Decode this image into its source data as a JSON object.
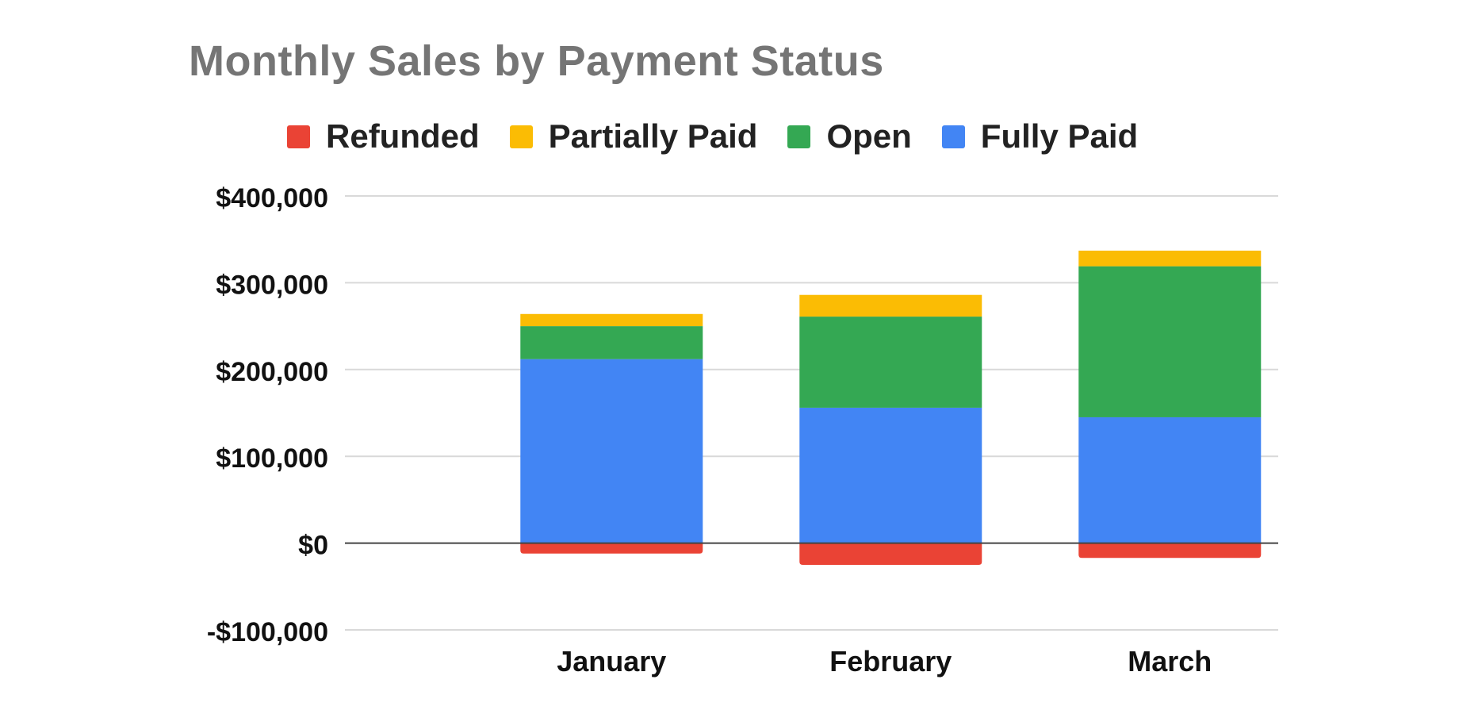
{
  "chart_data": {
    "type": "bar",
    "stacked": true,
    "title": "Monthly Sales by Payment Status",
    "xlabel": "",
    "ylabel": "",
    "categories": [
      "January",
      "February",
      "March"
    ],
    "series": [
      {
        "name": "Refunded",
        "color": "#ea4335",
        "values": [
          -12000,
          -25000,
          -17000
        ]
      },
      {
        "name": "Partially Paid",
        "color": "#fbbc04",
        "values": [
          14000,
          25000,
          18000
        ]
      },
      {
        "name": "Open",
        "color": "#34a853",
        "values": [
          38000,
          105000,
          174000
        ]
      },
      {
        "name": "Fully Paid",
        "color": "#4285f4",
        "values": [
          212000,
          156000,
          145000
        ]
      }
    ],
    "ylim": [
      -100000,
      400000
    ],
    "y_ticks": [
      {
        "value": 400000,
        "label": "$400,000"
      },
      {
        "value": 300000,
        "label": "$300,000"
      },
      {
        "value": 200000,
        "label": "$200,000"
      },
      {
        "value": 100000,
        "label": "$100,000"
      },
      {
        "value": 0,
        "label": "$0"
      },
      {
        "value": -100000,
        "label": "-$100,000"
      }
    ],
    "grid": true,
    "legend_position": "top"
  }
}
